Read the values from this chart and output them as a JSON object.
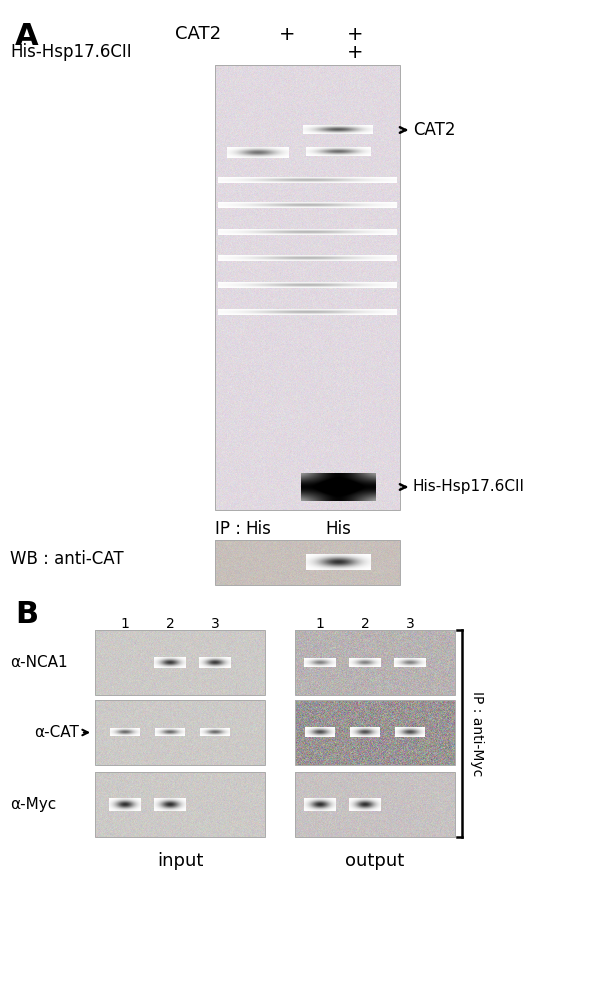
{
  "bg_color": "#ffffff",
  "panel_A_label": "A",
  "panel_B_label": "B",
  "cat2_label": "CAT2",
  "his_hsp_label": "His-Hsp17.6CII",
  "arrow_cat2": "CAT2",
  "arrow_his": "His-Hsp17.6CII",
  "ip_label": "IP :",
  "ip_his1": "His",
  "ip_his2": "His",
  "wb_label": "WB : anti-CAT",
  "col_labels_B": [
    "1",
    "2",
    "3",
    "1",
    "2",
    "3"
  ],
  "row_labels_B": [
    "α-NCA1",
    "α-CAT",
    "α-Myc"
  ],
  "input_label": "input",
  "output_label": "output",
  "ip_anti_myc_text": "IP : anti-Myc",
  "gel_A_bg": "#e8dde8",
  "gel_A_pink": "#ddd8e0",
  "wb_bg": "#ccc8c4",
  "panel_B_input_bg": "#c8c8c0",
  "panel_B_output_bg_nca1": "#b8b0b0",
  "panel_B_output_bg_cat": "#a0989a",
  "panel_B_output_bg_myc": "#c0bcba"
}
